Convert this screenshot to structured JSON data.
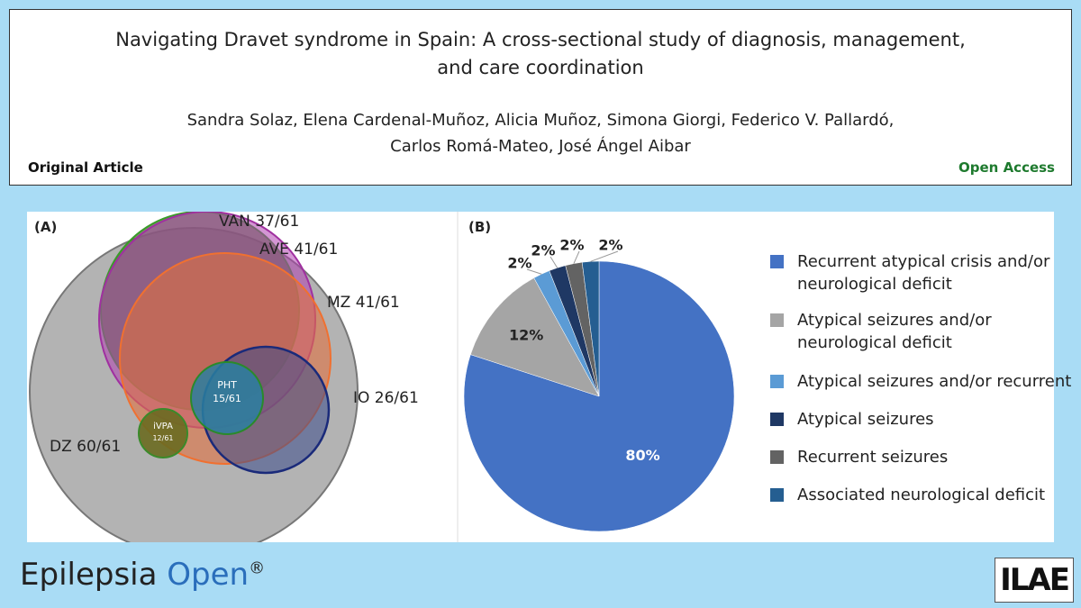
{
  "header": {
    "title_lines": [
      "Navigating Dravet syndrome in Spain: A cross-sectional study of diagnosis, management,",
      "and care coordination"
    ],
    "author_lines": [
      "Sandra Solaz, Elena Cardenal-Muñoz, Alicia Muñoz, Simona Giorgi, Federico V. Pallardó,",
      "Carlos Romá-Mateo, José Ángel Aibar"
    ],
    "article_type": "Original Article",
    "access": "Open Access"
  },
  "figure_a": {
    "panel_label": "(A)",
    "labels": {
      "van": "VAN 37/61",
      "ave": "AVE 41/61",
      "mz": "MZ 41/61",
      "io": "IO 26/61",
      "dz": "DZ 60/61",
      "pht_name": "PHT",
      "pht_count": "15/61",
      "ivpa_name": "iVPA",
      "ivpa_count": "12/61"
    }
  },
  "chart_data": {
    "type": "pie",
    "panel_label": "(B)",
    "categories": [
      "Recurrent atypical crisis and/or neurological deficit",
      "Atypical seizures and/or neurological deficit",
      "Atypical seizures and/or recurrent",
      "Atypical seizures",
      "Recurrent seizures",
      "Associated neurological deficit"
    ],
    "values": [
      80,
      12,
      2,
      2,
      2,
      2
    ],
    "value_labels": [
      "80%",
      "12%",
      "2%",
      "2%",
      "2%",
      "2%"
    ],
    "colors": [
      "#4472c4",
      "#a5a5a5",
      "#5b9bd5",
      "#1f3864",
      "#636363",
      "#255e91"
    ]
  },
  "footer": {
    "journal_main": "Epilepsia",
    "journal_accent": "Open",
    "mark": "®",
    "logo": "ILAE"
  }
}
